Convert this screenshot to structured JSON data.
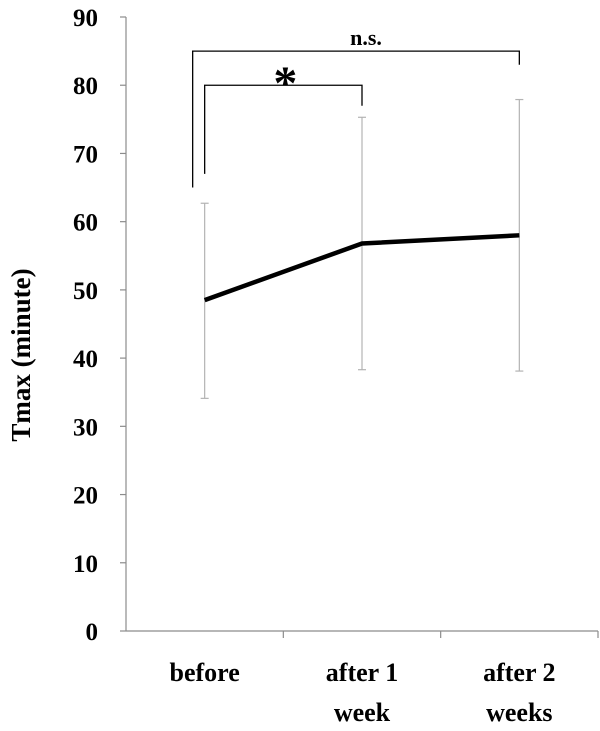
{
  "chart_data": {
    "type": "line",
    "categories": [
      [
        "before"
      ],
      [
        "after 1",
        "week"
      ],
      [
        "after 2",
        "weeks"
      ]
    ],
    "series": [
      {
        "values": [
          48.5,
          56.8,
          58.0
        ],
        "error_upper": [
          62.7,
          75.3,
          77.9
        ],
        "error_lower": [
          34.1,
          38.3,
          38.1
        ],
        "color": "#000000"
      }
    ],
    "error_bar_color": "#b3b3b3",
    "ylabel": "Tmax (minute)",
    "ylim": [
      0,
      90
    ],
    "yticks": [
      0,
      10,
      20,
      30,
      40,
      50,
      60,
      70,
      80,
      90
    ],
    "grid": false,
    "annotations": [
      {
        "from": 0,
        "to": 1,
        "text": "*",
        "level": 80
      },
      {
        "from": 0,
        "to": 2,
        "text": "n.s.",
        "level": 85
      }
    ]
  }
}
